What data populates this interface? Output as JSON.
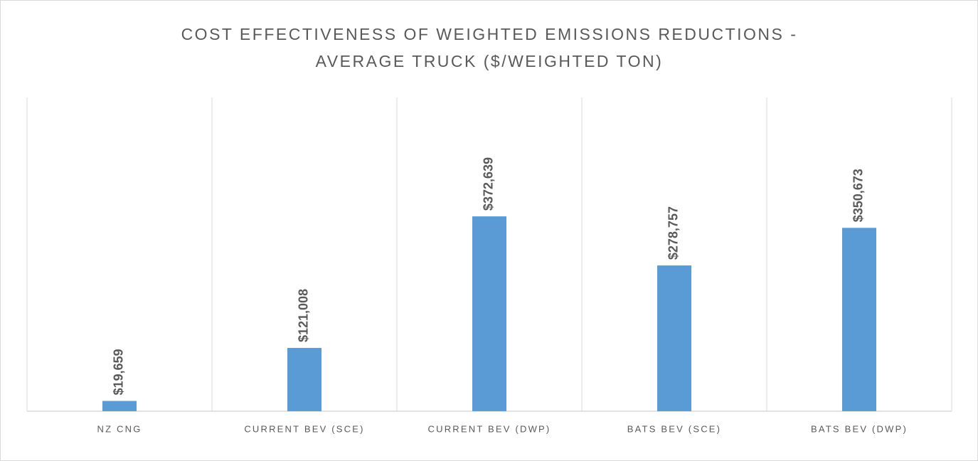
{
  "chart_data": {
    "type": "bar",
    "title": [
      "COST EFFECTIVENESS OF WEIGHTED EMISSIONS REDUCTIONS -",
      "AVERAGE TRUCK ($/WEIGHTED TON)"
    ],
    "categories": [
      "NZ CNG",
      "CURRENT BEV (SCE)",
      "CURRENT BEV (DWP)",
      "BATS BEV (SCE)",
      "BATS BEV (DWP)"
    ],
    "values": [
      19659,
      121008,
      372639,
      278757,
      350673
    ],
    "value_labels": [
      "$19,659",
      "$121,008",
      "$372,639",
      "$278,757",
      "$350,673"
    ],
    "color": "#5b9bd5",
    "ylim": [
      0,
      600000
    ]
  }
}
